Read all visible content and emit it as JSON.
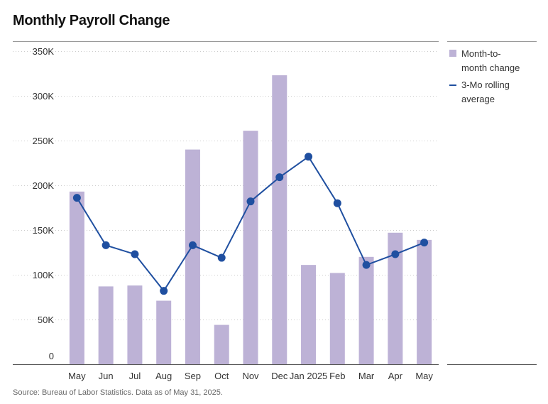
{
  "title": "Monthly Payroll Change",
  "source": "Source: Bureau of Labor Statistics. Data as of May 31, 2025.",
  "colors": {
    "bar": "#bdb2d6",
    "line": "#1f4fa0",
    "grid": "#cccccc",
    "axis": "#555555",
    "text": "#333333"
  },
  "legend": {
    "position": "right",
    "items": [
      {
        "label_lines": [
          "Month-to-",
          "month change"
        ],
        "kind": "bar"
      },
      {
        "label_lines": [
          "3-Mo rolling",
          "average"
        ],
        "kind": "line"
      }
    ]
  },
  "chart_data": {
    "type": "bar",
    "title": "Monthly Payroll Change",
    "xlabel": "",
    "ylabel": "",
    "categories": [
      "May",
      "Jun",
      "Jul",
      "Aug",
      "Sep",
      "Oct",
      "Nov",
      "Dec",
      "Jan 2025",
      "Feb",
      "Mar",
      "Apr",
      "May"
    ],
    "series": [
      {
        "name": "Month-to-month change",
        "type": "bar",
        "values": [
          193,
          87,
          88,
          71,
          240,
          44,
          261,
          323,
          111,
          102,
          120,
          147,
          139
        ]
      },
      {
        "name": "3-Mo rolling average",
        "type": "line",
        "values": [
          186,
          133,
          123,
          82,
          133,
          119,
          182,
          209,
          232,
          180,
          111,
          123,
          136
        ]
      }
    ],
    "yticks": [
      0,
      50,
      100,
      150,
      200,
      250,
      300,
      350
    ],
    "ytick_labels": [
      "0",
      "50K",
      "100K",
      "150K",
      "200K",
      "250K",
      "300K",
      "350K"
    ],
    "ylim": [
      0,
      350
    ],
    "grid": true,
    "legend_position": "right"
  }
}
